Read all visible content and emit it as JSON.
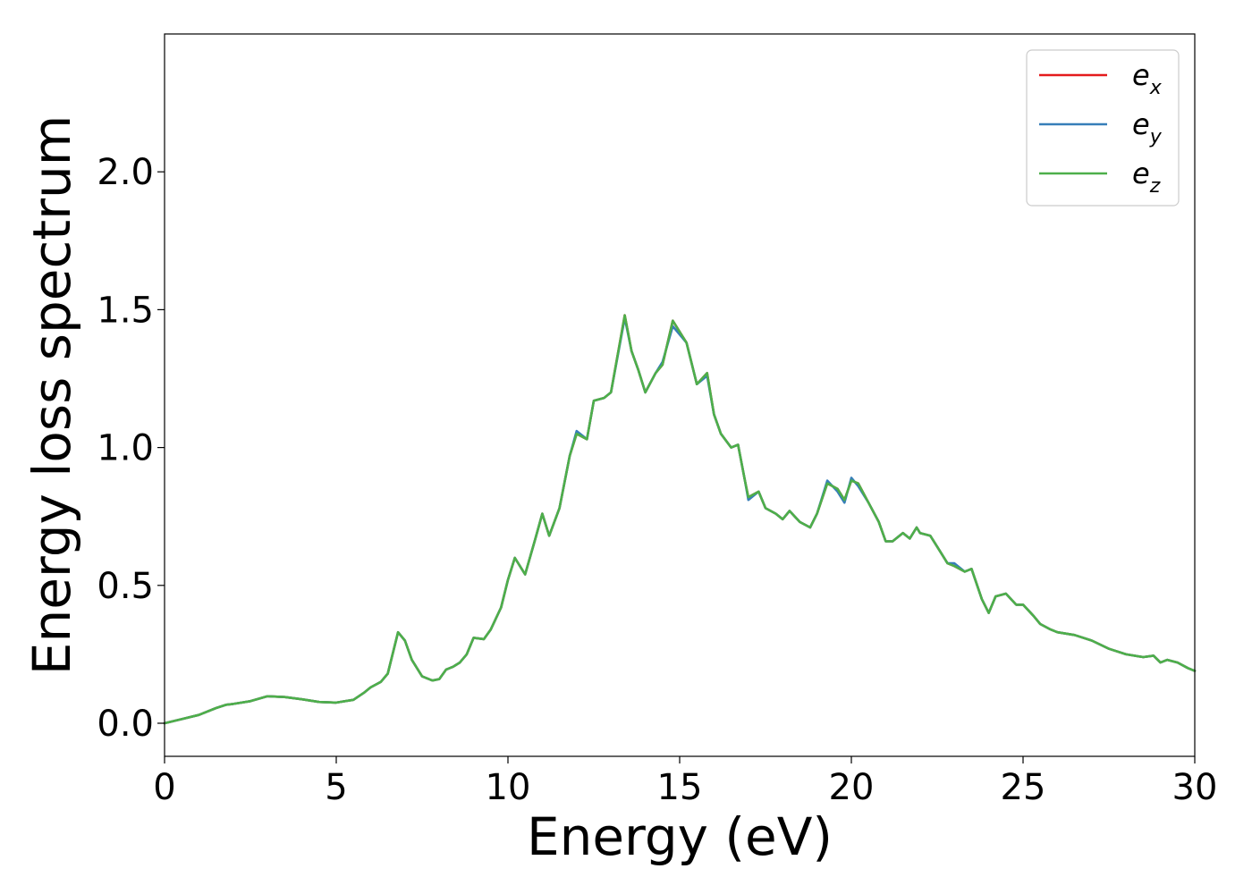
{
  "chart_data": {
    "type": "line",
    "title": "",
    "xlabel": "Energy (eV)",
    "ylabel": "Energy loss spectrum",
    "xlim": [
      0,
      30
    ],
    "ylim": [
      -0.12,
      2.5
    ],
    "xticks": [
      0,
      5,
      10,
      15,
      20,
      25,
      30
    ],
    "xtick_labels": [
      "0",
      "5",
      "10",
      "15",
      "20",
      "25",
      "30"
    ],
    "yticks": [
      0,
      0.5,
      1,
      1.5,
      2
    ],
    "ytick_labels": [
      "0.0",
      "0.5",
      "1.0",
      "1.5",
      "2.0"
    ],
    "grid": false,
    "legend_position": "top-right",
    "x": [
      0,
      0.5,
      1.0,
      1.5,
      1.8,
      2.0,
      2.5,
      3.0,
      3.5,
      4.0,
      4.5,
      5.0,
      5.5,
      5.8,
      6.0,
      6.3,
      6.5,
      6.8,
      7.0,
      7.2,
      7.5,
      7.8,
      8.0,
      8.2,
      8.4,
      8.6,
      8.8,
      9.0,
      9.3,
      9.5,
      9.8,
      10.0,
      10.2,
      10.5,
      10.8,
      11.0,
      11.2,
      11.5,
      11.8,
      12.0,
      12.3,
      12.5,
      12.8,
      13.0,
      13.4,
      13.6,
      13.8,
      14.0,
      14.3,
      14.5,
      14.8,
      15.0,
      15.2,
      15.5,
      15.8,
      16.0,
      16.2,
      16.5,
      16.7,
      16.9,
      17.0,
      17.3,
      17.5,
      17.8,
      18.0,
      18.2,
      18.5,
      18.8,
      19.0,
      19.3,
      19.6,
      19.8,
      20.0,
      20.2,
      20.5,
      20.8,
      21.0,
      21.2,
      21.5,
      21.7,
      21.9,
      22.0,
      22.3,
      22.5,
      22.8,
      23.0,
      23.3,
      23.5,
      23.8,
      24.0,
      24.2,
      24.5,
      24.8,
      25.0,
      25.3,
      25.5,
      25.8,
      26.0,
      26.5,
      27.0,
      27.5,
      28.0,
      28.5,
      28.8,
      29.0,
      29.2,
      29.5,
      29.8,
      30.0
    ],
    "series": [
      {
        "name": "e_x",
        "color": "#e41a1c",
        "values": [
          0.0,
          0.015,
          0.03,
          0.055,
          0.067,
          0.07,
          0.08,
          0.098,
          0.095,
          0.087,
          0.077,
          0.075,
          0.085,
          0.11,
          0.13,
          0.15,
          0.18,
          0.33,
          0.3,
          0.23,
          0.17,
          0.155,
          0.16,
          0.195,
          0.205,
          0.22,
          0.25,
          0.31,
          0.305,
          0.34,
          0.42,
          0.52,
          0.6,
          0.54,
          0.67,
          0.76,
          0.68,
          0.78,
          0.97,
          1.05,
          1.03,
          1.17,
          1.18,
          1.2,
          1.48,
          1.35,
          1.28,
          1.2,
          1.27,
          1.3,
          1.46,
          1.42,
          1.38,
          1.23,
          1.27,
          1.12,
          1.05,
          1.0,
          1.01,
          0.88,
          0.82,
          0.84,
          0.78,
          0.76,
          0.74,
          0.77,
          0.73,
          0.71,
          0.76,
          0.87,
          0.85,
          0.81,
          0.88,
          0.87,
          0.8,
          0.73,
          0.66,
          0.66,
          0.69,
          0.67,
          0.71,
          0.69,
          0.68,
          0.64,
          0.58,
          0.57,
          0.55,
          0.56,
          0.45,
          0.4,
          0.46,
          0.47,
          0.43,
          0.43,
          0.39,
          0.36,
          0.34,
          0.33,
          0.32,
          0.3,
          0.27,
          0.25,
          0.24,
          0.245,
          0.22,
          0.23,
          0.22,
          0.2,
          0.19
        ]
      },
      {
        "name": "e_y",
        "color": "#377eb8",
        "values": [
          0.0,
          0.015,
          0.03,
          0.055,
          0.067,
          0.07,
          0.08,
          0.098,
          0.095,
          0.087,
          0.077,
          0.075,
          0.085,
          0.11,
          0.13,
          0.15,
          0.18,
          0.33,
          0.3,
          0.23,
          0.17,
          0.155,
          0.16,
          0.195,
          0.205,
          0.22,
          0.25,
          0.31,
          0.305,
          0.34,
          0.42,
          0.52,
          0.6,
          0.54,
          0.67,
          0.76,
          0.68,
          0.78,
          0.97,
          1.06,
          1.03,
          1.17,
          1.18,
          1.2,
          1.47,
          1.35,
          1.28,
          1.2,
          1.27,
          1.31,
          1.44,
          1.41,
          1.38,
          1.23,
          1.26,
          1.12,
          1.05,
          1.0,
          1.01,
          0.88,
          0.81,
          0.84,
          0.78,
          0.76,
          0.74,
          0.77,
          0.73,
          0.71,
          0.76,
          0.88,
          0.84,
          0.8,
          0.89,
          0.86,
          0.8,
          0.73,
          0.66,
          0.66,
          0.69,
          0.67,
          0.71,
          0.69,
          0.68,
          0.64,
          0.58,
          0.58,
          0.55,
          0.56,
          0.45,
          0.4,
          0.46,
          0.47,
          0.43,
          0.43,
          0.39,
          0.36,
          0.34,
          0.33,
          0.32,
          0.3,
          0.27,
          0.25,
          0.24,
          0.245,
          0.22,
          0.23,
          0.22,
          0.2,
          0.19
        ]
      },
      {
        "name": "e_z",
        "color": "#4daf4a",
        "values": [
          0.0,
          0.015,
          0.03,
          0.055,
          0.067,
          0.07,
          0.08,
          0.098,
          0.095,
          0.087,
          0.077,
          0.075,
          0.085,
          0.11,
          0.13,
          0.15,
          0.18,
          0.33,
          0.3,
          0.23,
          0.17,
          0.155,
          0.16,
          0.195,
          0.205,
          0.22,
          0.25,
          0.31,
          0.305,
          0.34,
          0.42,
          0.52,
          0.6,
          0.54,
          0.67,
          0.76,
          0.68,
          0.78,
          0.97,
          1.05,
          1.03,
          1.17,
          1.18,
          1.2,
          1.48,
          1.35,
          1.28,
          1.2,
          1.27,
          1.3,
          1.46,
          1.42,
          1.38,
          1.23,
          1.27,
          1.12,
          1.05,
          1.0,
          1.01,
          0.88,
          0.82,
          0.84,
          0.78,
          0.76,
          0.74,
          0.77,
          0.73,
          0.71,
          0.76,
          0.87,
          0.85,
          0.81,
          0.88,
          0.87,
          0.8,
          0.73,
          0.66,
          0.66,
          0.69,
          0.67,
          0.71,
          0.69,
          0.68,
          0.64,
          0.58,
          0.57,
          0.55,
          0.56,
          0.45,
          0.4,
          0.46,
          0.47,
          0.43,
          0.43,
          0.39,
          0.36,
          0.34,
          0.33,
          0.32,
          0.3,
          0.27,
          0.25,
          0.24,
          0.245,
          0.22,
          0.23,
          0.22,
          0.2,
          0.19
        ]
      }
    ],
    "legend": [
      {
        "base": "e",
        "sub": "x"
      },
      {
        "base": "e",
        "sub": "y"
      },
      {
        "base": "e",
        "sub": "z"
      }
    ]
  }
}
